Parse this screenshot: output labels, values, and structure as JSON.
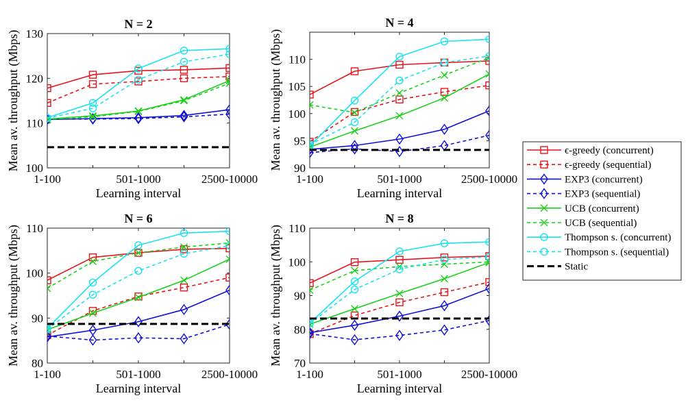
{
  "figure": {
    "legend": [
      {
        "label": "ϵ-greedy (concurrent)",
        "color": "#e8141a",
        "dash": "solid",
        "marker": "square"
      },
      {
        "label": "ϵ-greedy (sequential)",
        "color": "#e8141a",
        "dash": "dashed",
        "marker": "square"
      },
      {
        "label": "EXP3 (concurrent)",
        "color": "#1010d8",
        "dash": "solid",
        "marker": "diamond"
      },
      {
        "label": "EXP3 (sequential)",
        "color": "#1010d8",
        "dash": "dashed",
        "marker": "diamond"
      },
      {
        "label": "UCB (concurrent)",
        "color": "#19d119",
        "dash": "solid",
        "marker": "x"
      },
      {
        "label": "UCB (sequential)",
        "color": "#19d119",
        "dash": "dashed",
        "marker": "x"
      },
      {
        "label": "Thompson s. (concurrent)",
        "color": "#19e3ef",
        "dash": "solid",
        "marker": "circle"
      },
      {
        "label": "Thompson s. (sequential)",
        "color": "#19e3ef",
        "dash": "dashed",
        "marker": "circle"
      },
      {
        "label": "Static",
        "color": "#000000",
        "dash": "thickdash",
        "marker": "none"
      }
    ]
  },
  "chart_data": [
    {
      "type": "line",
      "title": "N = 2",
      "xlabel": "Learning interval",
      "ylabel": "Mean av. throughput (Mbps)",
      "x": [
        1,
        2,
        3,
        4,
        5
      ],
      "xticks": {
        "positions": [
          1,
          3,
          5
        ],
        "labels": [
          "1-100",
          "501-1000",
          "2500-10000"
        ]
      },
      "xlim": [
        1,
        5
      ],
      "ylim": [
        100,
        130
      ],
      "yticks": [
        100,
        110,
        120,
        130
      ],
      "series": [
        {
          "name": "ϵ-greedy (concurrent)",
          "values": [
            117.8,
            120.8,
            121.7,
            121.9,
            122.3
          ]
        },
        {
          "name": "ϵ-greedy (sequential)",
          "values": [
            114.5,
            118.7,
            119.3,
            120.0,
            120.4
          ]
        },
        {
          "name": "EXP3 (concurrent)",
          "values": [
            110.8,
            111.0,
            111.2,
            111.7,
            113.0
          ]
        },
        {
          "name": "EXP3 (sequential)",
          "values": [
            110.9,
            110.9,
            111.0,
            111.4,
            112.0
          ]
        },
        {
          "name": "UCB (concurrent)",
          "values": [
            110.9,
            111.6,
            112.7,
            115.2,
            119.5
          ]
        },
        {
          "name": "UCB (sequential)",
          "values": [
            110.8,
            111.4,
            112.6,
            115.0,
            118.9
          ]
        },
        {
          "name": "Thompson s. (concurrent)",
          "values": [
            111.2,
            114.5,
            122.2,
            126.2,
            126.6
          ]
        },
        {
          "name": "Thompson s. (sequential)",
          "values": [
            111.1,
            113.3,
            119.7,
            123.7,
            125.4
          ]
        },
        {
          "name": "Static",
          "values": [
            104.6,
            104.6,
            104.6,
            104.6,
            104.6
          ]
        }
      ]
    },
    {
      "type": "line",
      "title": "N = 4",
      "xlabel": "Learning interval",
      "ylabel": "Mean av. throughput (Mbps)",
      "x": [
        1,
        2,
        3,
        4,
        5
      ],
      "xticks": {
        "positions": [
          1,
          3,
          5
        ],
        "labels": [
          "1-100",
          "501-1000",
          "2500-10000"
        ]
      },
      "xlim": [
        1,
        5
      ],
      "ylim": [
        90,
        115
      ],
      "yticks": [
        90,
        95,
        100,
        105,
        110
      ],
      "series": [
        {
          "name": "ϵ-greedy (concurrent)",
          "values": [
            103.5,
            107.8,
            109.0,
            109.4,
            109.7
          ]
        },
        {
          "name": "ϵ-greedy (sequential)",
          "values": [
            94.8,
            100.3,
            102.6,
            104.0,
            105.2
          ]
        },
        {
          "name": "EXP3 (concurrent)",
          "values": [
            93.4,
            94.1,
            95.3,
            97.1,
            100.5
          ]
        },
        {
          "name": "EXP3 (sequential)",
          "values": [
            92.8,
            93.5,
            93.0,
            94.1,
            96.0
          ]
        },
        {
          "name": "UCB (concurrent)",
          "values": [
            93.8,
            96.8,
            99.6,
            102.9,
            107.3
          ]
        },
        {
          "name": "UCB (sequential)",
          "values": [
            101.6,
            100.2,
            103.8,
            107.1,
            110.3
          ]
        },
        {
          "name": "Thompson s. (concurrent)",
          "values": [
            94.0,
            102.4,
            110.5,
            113.3,
            113.7
          ]
        },
        {
          "name": "Thompson s. (sequential)",
          "values": [
            94.3,
            98.4,
            106.1,
            109.4,
            110.6
          ]
        },
        {
          "name": "Static",
          "values": [
            93.3,
            93.3,
            93.3,
            93.3,
            93.3
          ]
        }
      ]
    },
    {
      "type": "line",
      "title": "N = 6",
      "xlabel": "Learning interval",
      "ylabel": "Mean av. throughput (Mbps)",
      "x": [
        1,
        2,
        3,
        4,
        5
      ],
      "xticks": {
        "positions": [
          1,
          3,
          5
        ],
        "labels": [
          "1-100",
          "501-1000",
          "2500-10000"
        ]
      },
      "xlim": [
        1,
        5
      ],
      "ylim": [
        80,
        110
      ],
      "yticks": [
        80,
        90,
        100,
        110
      ],
      "series": [
        {
          "name": "ϵ-greedy (concurrent)",
          "values": [
            98.4,
            103.5,
            104.5,
            105.3,
            105.5
          ]
        },
        {
          "name": "ϵ-greedy (sequential)",
          "values": [
            86.2,
            91.6,
            94.8,
            96.8,
            99.0
          ]
        },
        {
          "name": "EXP3 (concurrent)",
          "values": [
            85.8,
            87.3,
            89.2,
            91.9,
            96.2
          ]
        },
        {
          "name": "EXP3 (sequential)",
          "values": [
            86.0,
            85.1,
            85.6,
            85.4,
            88.6
          ]
        },
        {
          "name": "UCB (concurrent)",
          "values": [
            87.4,
            91.1,
            94.6,
            98.4,
            103.1
          ]
        },
        {
          "name": "UCB (sequential)",
          "values": [
            96.6,
            102.6,
            104.5,
            105.8,
            106.7
          ]
        },
        {
          "name": "Thompson s. (concurrent)",
          "values": [
            87.7,
            97.9,
            106.2,
            108.9,
            109.3
          ]
        },
        {
          "name": "Thompson s. (sequential)",
          "values": [
            87.5,
            95.2,
            100.5,
            104.3,
            106.1
          ]
        },
        {
          "name": "Static",
          "values": [
            88.7,
            88.7,
            88.7,
            88.7,
            88.7
          ]
        }
      ]
    },
    {
      "type": "line",
      "title": "N = 8",
      "xlabel": "Learning interval",
      "ylabel": "Mean av. throughput (Mbps)",
      "x": [
        1,
        2,
        3,
        4,
        5
      ],
      "xticks": {
        "positions": [
          1,
          3,
          5
        ],
        "labels": [
          "1-100",
          "501-1000",
          "2500-10000"
        ]
      },
      "xlim": [
        1,
        5
      ],
      "ylim": [
        70,
        110
      ],
      "yticks": [
        70,
        80,
        90,
        100,
        110
      ],
      "series": [
        {
          "name": "ϵ-greedy (concurrent)",
          "values": [
            93.7,
            99.9,
            100.6,
            101.3,
            101.7
          ]
        },
        {
          "name": "ϵ-greedy (sequential)",
          "values": [
            78.6,
            84.1,
            88.0,
            91.0,
            94.0
          ]
        },
        {
          "name": "EXP3 (concurrent)",
          "values": [
            79.0,
            81.2,
            83.9,
            87.0,
            92.1
          ]
        },
        {
          "name": "EXP3 (sequential)",
          "values": [
            78.7,
            76.9,
            78.2,
            79.8,
            82.6
          ]
        },
        {
          "name": "UCB (concurrent)",
          "values": [
            81.5,
            86.1,
            90.6,
            95.0,
            99.8
          ]
        },
        {
          "name": "UCB (sequential)",
          "values": [
            91.6,
            97.4,
            98.6,
            99.3,
            100.0
          ]
        },
        {
          "name": "Thompson s. (concurrent)",
          "values": [
            81.8,
            94.2,
            103.1,
            105.5,
            105.9
          ]
        },
        {
          "name": "Thompson s. (sequential)",
          "values": [
            81.7,
            91.8,
            97.8,
            100.7,
            101.5
          ]
        },
        {
          "name": "Static",
          "values": [
            83.2,
            83.2,
            83.2,
            83.2,
            83.2
          ]
        }
      ]
    }
  ]
}
